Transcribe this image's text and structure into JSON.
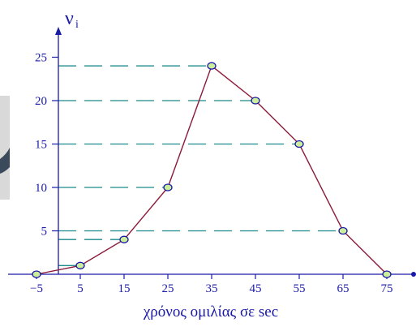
{
  "chart_data": {
    "type": "line",
    "title": "",
    "xlabel": "χρόνος ομιλίας σε sec",
    "ylabel": "ν",
    "ylabel_subscript": "i",
    "x": [
      -5,
      5,
      15,
      25,
      35,
      45,
      55,
      65,
      75
    ],
    "x_tick_labels": [
      "−5",
      "5",
      "15",
      "25",
      "35",
      "45",
      "55",
      "65",
      "75"
    ],
    "y_ticks": [
      5,
      10,
      15,
      20,
      25
    ],
    "y_tick_labels": [
      "5",
      "10",
      "15",
      "20",
      "25"
    ],
    "xlim": [
      -5,
      75
    ],
    "ylim": [
      0,
      25
    ],
    "series": [
      {
        "values": [
          0,
          1,
          4,
          10,
          24,
          20,
          15,
          5,
          0
        ]
      }
    ],
    "grid": false,
    "guide_lines": "dashed horizontal lines from the y-axis to each point",
    "colors": {
      "axis": "#1a1aa8",
      "line": "#8b1a3a",
      "marker_fill": "#ccee99",
      "marker_stroke": "#1a1aa8",
      "guide": "#1a8a8a"
    }
  }
}
